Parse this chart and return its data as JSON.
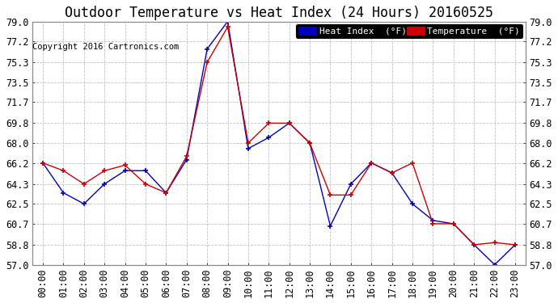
{
  "title": "Outdoor Temperature vs Heat Index (24 Hours) 20160525",
  "copyright": "Copyright 2016 Cartronics.com",
  "legend_heat": "Heat Index  (°F)",
  "legend_temp": "Temperature  (°F)",
  "x_labels": [
    "00:00",
    "01:00",
    "02:00",
    "03:00",
    "04:00",
    "05:00",
    "06:00",
    "07:00",
    "08:00",
    "09:00",
    "10:00",
    "11:00",
    "12:00",
    "13:00",
    "14:00",
    "15:00",
    "16:00",
    "17:00",
    "18:00",
    "19:00",
    "20:00",
    "21:00",
    "22:00",
    "23:00"
  ],
  "heat_index": [
    66.2,
    63.5,
    62.5,
    64.3,
    65.5,
    65.5,
    63.5,
    66.5,
    76.5,
    79.0,
    67.5,
    68.5,
    69.8,
    68.0,
    60.5,
    64.3,
    66.2,
    65.3,
    62.5,
    61.0,
    60.7,
    58.8,
    57.0,
    58.8
  ],
  "temperature": [
    66.2,
    65.5,
    64.3,
    65.5,
    66.0,
    64.3,
    63.5,
    66.8,
    75.3,
    78.5,
    68.0,
    69.8,
    69.8,
    68.0,
    63.3,
    63.3,
    66.2,
    65.3,
    66.2,
    60.7,
    60.7,
    58.8,
    59.0,
    58.8
  ],
  "heat_color": "#0000bb",
  "temp_color": "#cc0000",
  "ylim_min": 57.0,
  "ylim_max": 79.0,
  "yticks": [
    57.0,
    58.8,
    60.7,
    62.5,
    64.3,
    66.2,
    68.0,
    69.8,
    71.7,
    73.5,
    75.3,
    77.2,
    79.0
  ],
  "bg_color": "#ffffff",
  "grid_color": "#bbbbbb",
  "title_fontsize": 12,
  "label_fontsize": 8.5,
  "copyright_fontsize": 7.5,
  "legend_fontsize": 8
}
